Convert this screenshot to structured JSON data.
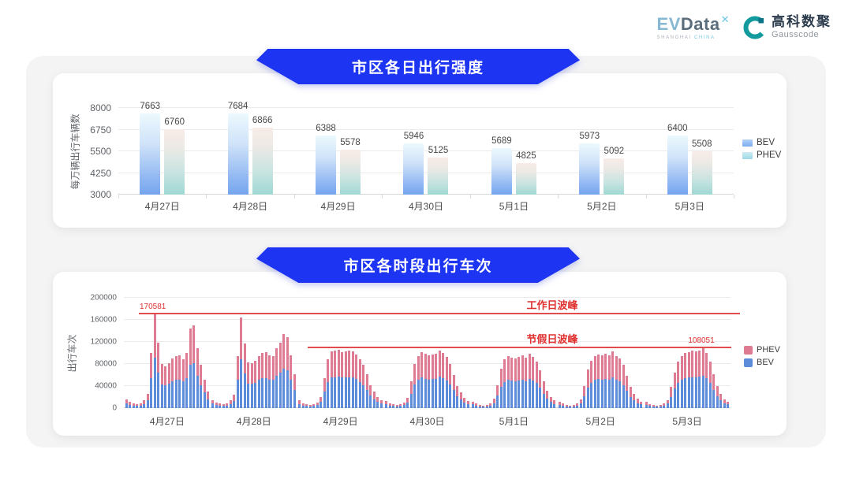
{
  "header": {
    "evdata": {
      "ev": "EV",
      "data": "Data",
      "sup": "✕",
      "sub1": "SHANGHAI",
      "sub2": "CHINA"
    },
    "gausscode": {
      "cn": "高科数聚",
      "en": "Gausscode"
    }
  },
  "colors": {
    "banner_blue": "#1d35f3",
    "bev_daily_bottom": "#74a4ee",
    "phev_daily_bottom": "#9fd8d3",
    "bev_hourly": "#5d8cdb",
    "phev_hourly": "#de7a92",
    "annotation_red": "#e03030"
  },
  "chart_data": [
    {
      "type": "bar",
      "title": "市区各日出行强度",
      "ylabel": "每万辆出行车辆数",
      "yticks": [
        3000,
        4250,
        5500,
        6750,
        8000
      ],
      "ylim": [
        3000,
        8000
      ],
      "grid": true,
      "legend": [
        "BEV",
        "PHEV"
      ],
      "legend_position": "right",
      "categories": [
        "4月27日",
        "4月28日",
        "4月29日",
        "4月30日",
        "5月1日",
        "5月2日",
        "5月3日"
      ],
      "series": [
        {
          "name": "BEV",
          "values": [
            7663,
            7684,
            6388,
            5946,
            5689,
            5973,
            6400
          ]
        },
        {
          "name": "PHEV",
          "values": [
            6760,
            6866,
            5578,
            5125,
            4825,
            5092,
            5508
          ]
        }
      ]
    },
    {
      "type": "bar",
      "subtype": "stacked-hourly",
      "title": "市区各时段出行车次",
      "ylabel": "出行车次",
      "yticks": [
        0,
        40000,
        80000,
        120000,
        160000,
        200000
      ],
      "ylim": [
        0,
        200000
      ],
      "grid": true,
      "legend": [
        "PHEV",
        "BEV"
      ],
      "legend_position": "right",
      "categories": [
        "4月27日",
        "4月28日",
        "4月29日",
        "4月30日",
        "5月1日",
        "5月2日",
        "5月3日"
      ],
      "annotations": [
        {
          "name": "workday_peak",
          "label": "工作日波峰",
          "value": 170581,
          "value_label": "170581"
        },
        {
          "name": "holiday_peak",
          "label": "节假日波峰",
          "value": 108051,
          "value_label": "108051"
        }
      ],
      "days": [
        {
          "date": "4月27日",
          "bev": [
            8600,
            5900,
            4300,
            3800,
            4900,
            7600,
            14000,
            54000,
            92000,
            64000,
            43000,
            41000,
            44000,
            49000,
            51000,
            52000,
            48000,
            54000,
            78000,
            81000,
            59000,
            42000,
            28000,
            16000
          ],
          "phev": [
            7400,
            5100,
            3700,
            3200,
            4100,
            6400,
            12000,
            46000,
            78581,
            55000,
            37000,
            35000,
            37000,
            41000,
            44000,
            44000,
            41000,
            46000,
            67000,
            69000,
            50000,
            36000,
            24000,
            14000
          ]
        },
        {
          "date": "4月28日",
          "bev": [
            8100,
            5400,
            4300,
            3800,
            4900,
            7600,
            13000,
            51000,
            89000,
            63000,
            45000,
            44000,
            46000,
            51000,
            54000,
            55000,
            52000,
            51000,
            58000,
            64000,
            72000,
            69000,
            52000,
            33000
          ],
          "phev": [
            6900,
            4600,
            3700,
            3200,
            4100,
            6400,
            11000,
            43000,
            75000,
            54000,
            38000,
            37000,
            40000,
            44000,
            46000,
            46000,
            44000,
            43000,
            50000,
            54000,
            62000,
            59000,
            44000,
            29000
          ]
        },
        {
          "date": "4月29日",
          "bev": [
            7600,
            4900,
            3800,
            3200,
            3800,
            5400,
            10800,
            29700,
            47500,
            55600,
            56200,
            57200,
            55100,
            55600,
            56200,
            55600,
            52400,
            47500,
            42100,
            33500,
            22700,
            16200,
            10800,
            8100
          ],
          "phev": [
            6400,
            4100,
            3200,
            2800,
            3200,
            4600,
            9200,
            25300,
            40500,
            47400,
            47800,
            48800,
            46900,
            47400,
            47800,
            47400,
            44600,
            40500,
            35900,
            28500,
            19300,
            13800,
            9200,
            6900
          ]
        },
        {
          "date": "4月30日",
          "bev": [
            7000,
            4900,
            3800,
            3200,
            3800,
            5400,
            10300,
            25900,
            43200,
            51300,
            55100,
            52900,
            51800,
            52400,
            53500,
            56700,
            54000,
            50200,
            43200,
            32400,
            21600,
            15100,
            9700,
            7000
          ],
          "phev": [
            6000,
            4100,
            3200,
            2800,
            3200,
            4600,
            8700,
            22100,
            36800,
            43700,
            46900,
            45100,
            44200,
            44600,
            45500,
            48300,
            46000,
            42800,
            36800,
            27600,
            18400,
            12900,
            8300,
            6000
          ]
        },
        {
          "date": "5月1日",
          "bev": [
            6500,
            4300,
            3200,
            2700,
            3200,
            4900,
            9200,
            22700,
            38900,
            47500,
            50800,
            49700,
            48600,
            50200,
            51800,
            49100,
            53500,
            50200,
            45900,
            36700,
            25900,
            17300,
            10800,
            7600
          ],
          "phev": [
            5500,
            3700,
            2800,
            2300,
            2800,
            4100,
            7800,
            19300,
            33100,
            40500,
            43200,
            42300,
            41400,
            42800,
            44200,
            41900,
            45500,
            42800,
            39100,
            31300,
            22100,
            14700,
            9200,
            6400
          ]
        },
        {
          "date": "5月2日",
          "bev": [
            5900,
            4300,
            3200,
            2700,
            3200,
            4900,
            8600,
            21600,
            37800,
            46400,
            51300,
            52400,
            51800,
            52900,
            51800,
            55600,
            51300,
            48600,
            42100,
            31300,
            20500,
            14000,
            9200,
            6500
          ],
          "phev": [
            5100,
            3700,
            2800,
            2300,
            2800,
            4100,
            7400,
            18400,
            32200,
            39600,
            43700,
            44600,
            44200,
            45100,
            44200,
            47400,
            43700,
            41400,
            35900,
            26700,
            17500,
            12000,
            7800,
            5500
          ]
        },
        {
          "date": "5月3日",
          "bev": [
            5900,
            3800,
            3200,
            2700,
            3200,
            4300,
            8100,
            20500,
            35100,
            45900,
            51300,
            54000,
            55100,
            56200,
            55600,
            56700,
            58000,
            54000,
            45900,
            33500,
            21600,
            14000,
            8600,
            6500
          ],
          "phev": [
            5100,
            3200,
            2800,
            2300,
            2800,
            3700,
            6900,
            17500,
            29900,
            39100,
            43700,
            46000,
            46900,
            47800,
            47400,
            48300,
            50051,
            46000,
            39100,
            28500,
            18400,
            12000,
            7400,
            5500
          ]
        }
      ]
    }
  ]
}
